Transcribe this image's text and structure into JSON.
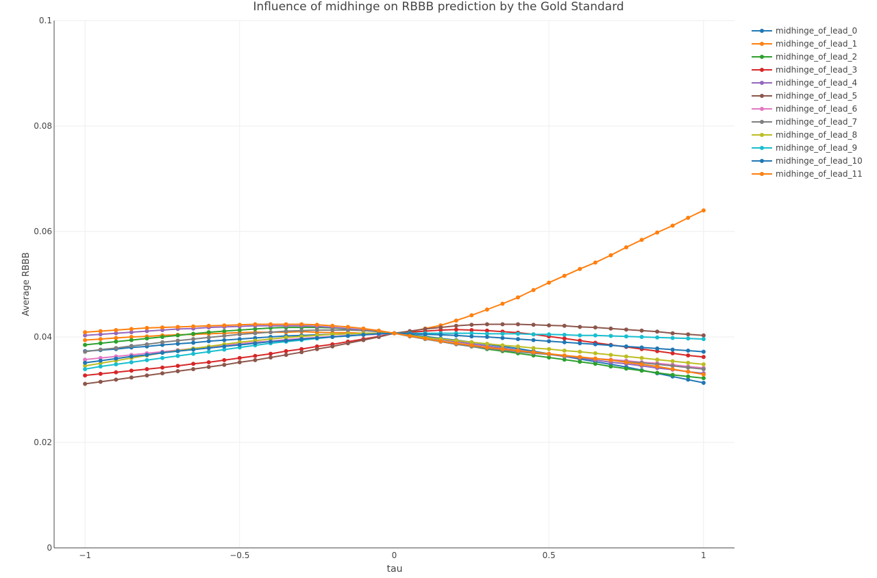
{
  "chart_data": {
    "type": "line",
    "title": "Influence of midhinge on RBBB prediction by the Gold Standard",
    "xlabel": "tau",
    "ylabel": "Average RBBB",
    "xlim": [
      -1.1,
      1.1
    ],
    "ylim": [
      0,
      0.1
    ],
    "x_ticks": [
      -1,
      -0.5,
      0,
      0.5,
      1
    ],
    "x_tick_labels": [
      "−1",
      "−0.5",
      "0",
      "0.5",
      "1"
    ],
    "y_ticks": [
      0,
      0.02,
      0.04,
      0.06,
      0.08,
      0.1
    ],
    "y_tick_labels": [
      "0",
      "0.02",
      "0.04",
      "0.06",
      "0.08",
      "0.1"
    ],
    "grid": true,
    "legend_position": "right",
    "x": [
      -1,
      -0.95,
      -0.9,
      -0.85,
      -0.8,
      -0.75,
      -0.7,
      -0.65,
      -0.6,
      -0.55,
      -0.5,
      -0.45,
      -0.4,
      -0.35,
      -0.3,
      -0.25,
      -0.2,
      -0.15,
      -0.1,
      -0.05,
      0,
      0.05,
      0.1,
      0.15,
      0.2,
      0.25,
      0.3,
      0.35,
      0.4,
      0.45,
      0.5,
      0.55,
      0.6,
      0.65,
      0.7,
      0.75,
      0.8,
      0.85,
      0.9,
      0.95,
      1
    ],
    "series": [
      {
        "name": "midhinge_of_lead_0",
        "color": "#1f77b4",
        "values": [
          0.0373,
          0.0375,
          0.0377,
          0.038,
          0.0382,
          0.0385,
          0.0387,
          0.0389,
          0.0392,
          0.0394,
          0.0396,
          0.0398,
          0.04,
          0.0402,
          0.0403,
          0.0404,
          0.0405,
          0.0406,
          0.0407,
          0.0407,
          0.0407,
          0.0404,
          0.0401,
          0.0397,
          0.0394,
          0.039,
          0.0386,
          0.0382,
          0.0378,
          0.0373,
          0.0368,
          0.0363,
          0.0358,
          0.0353,
          0.0348,
          0.0343,
          0.0337,
          0.0331,
          0.0325,
          0.0319,
          0.0313
        ]
      },
      {
        "name": "midhinge_of_lead_1",
        "color": "#ff7f0e",
        "values": [
          0.0394,
          0.0396,
          0.0398,
          0.04,
          0.0401,
          0.0403,
          0.0404,
          0.0405,
          0.0406,
          0.0407,
          0.0408,
          0.0409,
          0.0409,
          0.0409,
          0.041,
          0.0409,
          0.0408,
          0.0408,
          0.0407,
          0.0406,
          0.0407,
          0.041,
          0.0416,
          0.0422,
          0.0431,
          0.0441,
          0.0452,
          0.0463,
          0.0475,
          0.0489,
          0.0503,
          0.0516,
          0.0529,
          0.0541,
          0.0555,
          0.057,
          0.0584,
          0.0598,
          0.0611,
          0.0626,
          0.064
        ]
      },
      {
        "name": "midhinge_of_lead_2",
        "color": "#2ca02c",
        "values": [
          0.0385,
          0.0388,
          0.0391,
          0.0394,
          0.0397,
          0.04,
          0.0403,
          0.0406,
          0.0409,
          0.0411,
          0.0413,
          0.0415,
          0.0417,
          0.0418,
          0.0418,
          0.0418,
          0.0417,
          0.0415,
          0.0413,
          0.041,
          0.0407,
          0.0402,
          0.0397,
          0.0392,
          0.0387,
          0.0382,
          0.0377,
          0.0373,
          0.0369,
          0.0365,
          0.0361,
          0.0357,
          0.0353,
          0.0349,
          0.0344,
          0.034,
          0.0336,
          0.0332,
          0.0328,
          0.0325,
          0.0322
        ]
      },
      {
        "name": "midhinge_of_lead_3",
        "color": "#d62728",
        "values": [
          0.0327,
          0.033,
          0.0333,
          0.0336,
          0.0339,
          0.0342,
          0.0345,
          0.0349,
          0.0352,
          0.0356,
          0.036,
          0.0364,
          0.0368,
          0.0373,
          0.0377,
          0.0382,
          0.0386,
          0.0391,
          0.0396,
          0.0401,
          0.0407,
          0.0409,
          0.0411,
          0.0413,
          0.0414,
          0.0413,
          0.0412,
          0.041,
          0.0408,
          0.0405,
          0.0401,
          0.0397,
          0.0393,
          0.0389,
          0.0385,
          0.0381,
          0.0377,
          0.0373,
          0.0369,
          0.0365,
          0.0362
        ]
      },
      {
        "name": "midhinge_of_lead_4",
        "color": "#9467bd",
        "values": [
          0.0403,
          0.0405,
          0.0407,
          0.0409,
          0.0411,
          0.0413,
          0.0415,
          0.0416,
          0.0418,
          0.0419,
          0.042,
          0.0421,
          0.0421,
          0.0421,
          0.0421,
          0.042,
          0.0418,
          0.0416,
          0.0413,
          0.041,
          0.0407,
          0.0403,
          0.0399,
          0.0395,
          0.0391,
          0.0387,
          0.0383,
          0.0379,
          0.0375,
          0.0371,
          0.0367,
          0.0363,
          0.036,
          0.0356,
          0.0352,
          0.0349,
          0.0345,
          0.0341,
          0.0338,
          0.0334,
          0.0331
        ]
      },
      {
        "name": "midhinge_of_lead_5",
        "color": "#8c564b",
        "values": [
          0.0311,
          0.0315,
          0.0319,
          0.0323,
          0.0327,
          0.0331,
          0.0335,
          0.0339,
          0.0343,
          0.0347,
          0.0352,
          0.0356,
          0.0361,
          0.0366,
          0.0371,
          0.0377,
          0.0382,
          0.0388,
          0.0394,
          0.04,
          0.0407,
          0.0411,
          0.0415,
          0.0418,
          0.0421,
          0.0423,
          0.0424,
          0.0424,
          0.0424,
          0.0423,
          0.0422,
          0.0421,
          0.0419,
          0.0418,
          0.0416,
          0.0414,
          0.0412,
          0.041,
          0.0407,
          0.0405,
          0.0403
        ]
      },
      {
        "name": "midhinge_of_lead_6",
        "color": "#e377c2",
        "values": [
          0.0357,
          0.036,
          0.0363,
          0.0366,
          0.0369,
          0.0372,
          0.0375,
          0.0378,
          0.0381,
          0.0384,
          0.0387,
          0.039,
          0.0392,
          0.0395,
          0.0397,
          0.0399,
          0.0401,
          0.0403,
          0.0404,
          0.0405,
          0.0407,
          0.0402,
          0.0397,
          0.0392,
          0.0388,
          0.0384,
          0.038,
          0.0376,
          0.0373,
          0.037,
          0.0367,
          0.0364,
          0.0362,
          0.0359,
          0.0357,
          0.0355,
          0.0352,
          0.035,
          0.0347,
          0.0344,
          0.0341
        ]
      },
      {
        "name": "midhinge_of_lead_7",
        "color": "#7f7f7f",
        "values": [
          0.0372,
          0.0376,
          0.0379,
          0.0383,
          0.0386,
          0.039,
          0.0393,
          0.0396,
          0.0399,
          0.0402,
          0.0405,
          0.0407,
          0.0409,
          0.0411,
          0.0412,
          0.0413,
          0.0413,
          0.0413,
          0.0412,
          0.041,
          0.0407,
          0.0401,
          0.0396,
          0.0391,
          0.0386,
          0.0382,
          0.0378,
          0.0375,
          0.0372,
          0.0369,
          0.0367,
          0.0364,
          0.0361,
          0.0359,
          0.0356,
          0.0353,
          0.0351,
          0.0348,
          0.0345,
          0.0342,
          0.0339
        ]
      },
      {
        "name": "midhinge_of_lead_8",
        "color": "#bcbd22",
        "values": [
          0.0345,
          0.035,
          0.0355,
          0.036,
          0.0365,
          0.037,
          0.0374,
          0.0378,
          0.0382,
          0.0386,
          0.039,
          0.0393,
          0.0396,
          0.0399,
          0.0401,
          0.0403,
          0.0405,
          0.0406,
          0.0407,
          0.0407,
          0.0407,
          0.0403,
          0.0399,
          0.0396,
          0.0393,
          0.039,
          0.0387,
          0.0384,
          0.0382,
          0.0379,
          0.0377,
          0.0374,
          0.0372,
          0.0369,
          0.0366,
          0.0363,
          0.036,
          0.0357,
          0.0354,
          0.0351,
          0.0348
        ]
      },
      {
        "name": "midhinge_of_lead_9",
        "color": "#17becf",
        "values": [
          0.0339,
          0.0344,
          0.0348,
          0.0352,
          0.0356,
          0.036,
          0.0364,
          0.0368,
          0.0372,
          0.0376,
          0.038,
          0.0384,
          0.0388,
          0.0391,
          0.0394,
          0.0397,
          0.04,
          0.0402,
          0.0404,
          0.0406,
          0.0407,
          0.0407,
          0.0407,
          0.0407,
          0.0407,
          0.0407,
          0.0406,
          0.0406,
          0.0406,
          0.0405,
          0.0405,
          0.0404,
          0.0403,
          0.0403,
          0.0402,
          0.0401,
          0.04,
          0.0399,
          0.0398,
          0.0397,
          0.0396
        ]
      },
      {
        "name": "midhinge_of_lead_10",
        "color": "#1f77b4",
        "values": [
          0.0351,
          0.0355,
          0.0359,
          0.0363,
          0.0366,
          0.037,
          0.0373,
          0.0376,
          0.0379,
          0.0382,
          0.0385,
          0.0388,
          0.0391,
          0.0393,
          0.0396,
          0.0398,
          0.04,
          0.0402,
          0.0404,
          0.0406,
          0.0407,
          0.0406,
          0.0405,
          0.0404,
          0.0403,
          0.0401,
          0.04,
          0.0398,
          0.0396,
          0.0394,
          0.0392,
          0.039,
          0.0388,
          0.0386,
          0.0384,
          0.0382,
          0.038,
          0.0378,
          0.0376,
          0.0374,
          0.0372
        ]
      },
      {
        "name": "midhinge_of_lead_11",
        "color": "#ff7f0e",
        "values": [
          0.0409,
          0.0411,
          0.0413,
          0.0415,
          0.0417,
          0.0418,
          0.0419,
          0.042,
          0.0421,
          0.0422,
          0.0423,
          0.0424,
          0.0424,
          0.0424,
          0.0424,
          0.0423,
          0.0421,
          0.0419,
          0.0416,
          0.0412,
          0.0407,
          0.0402,
          0.0397,
          0.0392,
          0.0388,
          0.0384,
          0.038,
          0.0377,
          0.0374,
          0.0371,
          0.0368,
          0.0365,
          0.0362,
          0.0359,
          0.0356,
          0.0352,
          0.0348,
          0.0344,
          0.0339,
          0.0334,
          0.0329
        ]
      }
    ]
  }
}
